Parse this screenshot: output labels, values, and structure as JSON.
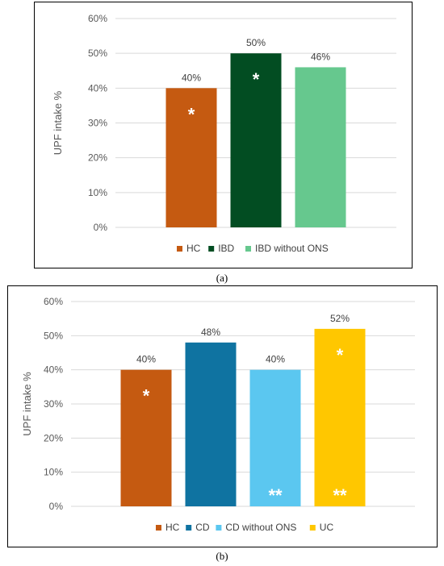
{
  "chart_data": [
    {
      "type": "bar",
      "panel_label": "a",
      "categories": [
        "HC",
        "IBD",
        "IBD without ONS"
      ],
      "values": [
        40,
        50,
        46
      ],
      "data_labels": [
        "40%",
        "50%",
        "46%"
      ],
      "colors": [
        "#c55a11",
        "#024d22",
        "#66c88e"
      ],
      "ylabel": "UPF intake %",
      "ylim": [
        0,
        60
      ],
      "yticks": [
        "0%",
        "10%",
        "20%",
        "30%",
        "40%",
        "50%",
        "60%"
      ],
      "legend_position": "bottom",
      "grid": true,
      "annotations": [
        {
          "category": "HC",
          "text": "*",
          "position": "top"
        },
        {
          "category": "IBD",
          "text": "*",
          "position": "top"
        }
      ]
    },
    {
      "type": "bar",
      "panel_label": "b",
      "categories": [
        "HC",
        "CD",
        "CD without ONS",
        "UC"
      ],
      "values": [
        40,
        48,
        40,
        52
      ],
      "data_labels": [
        "40%",
        "48%",
        "40%",
        "52%"
      ],
      "colors": [
        "#c55a11",
        "#0f73a1",
        "#5bc7f0",
        "#ffc700"
      ],
      "ylabel": "UPF intake %",
      "ylim": [
        0,
        60
      ],
      "yticks": [
        "0%",
        "10%",
        "20%",
        "30%",
        "40%",
        "50%",
        "60%"
      ],
      "legend_position": "bottom",
      "grid": true,
      "annotations": [
        {
          "category": "HC",
          "text": "*",
          "position": "top"
        },
        {
          "category": "CD without ONS",
          "text": "**",
          "position": "bottom"
        },
        {
          "category": "UC",
          "text": "*",
          "position": "top"
        },
        {
          "category": "UC",
          "text": "**",
          "position": "bottom"
        }
      ]
    }
  ],
  "captions": {
    "a": "(a)",
    "b": "(b)"
  }
}
